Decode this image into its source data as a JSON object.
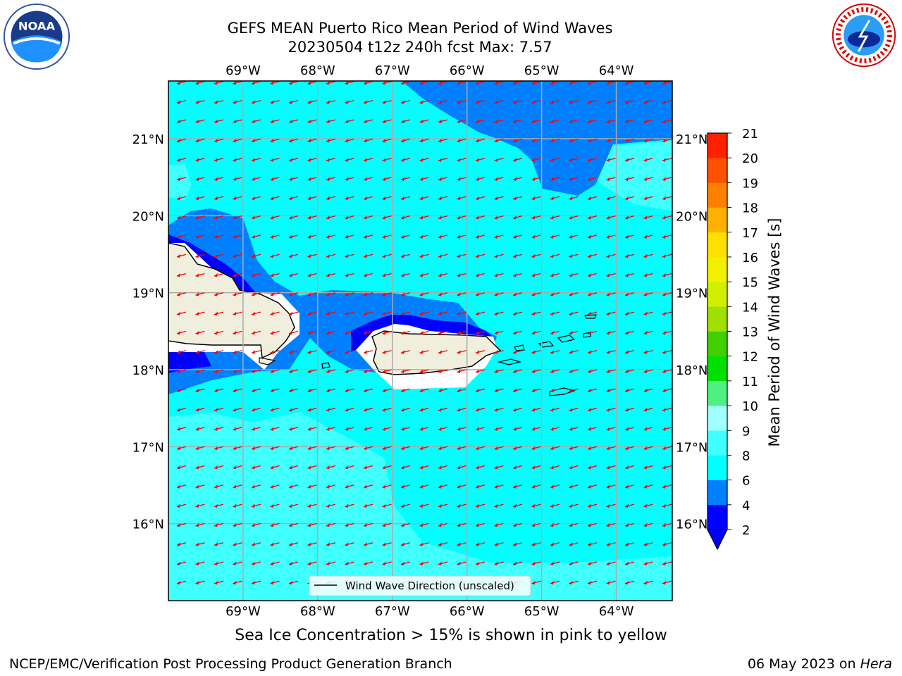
{
  "header": {
    "title_line1": "GEFS MEAN Puerto Rico Mean Period of Wind Waves",
    "title_line2": "20230504 t12z 240h fcst   Max: 7.57"
  },
  "logos": {
    "left_icon": "noaa-logo-icon",
    "left_text": "NOAA",
    "right_icon": "national-weather-service-logo-icon",
    "right_text": "NATIONAL WEATHER SERVICE"
  },
  "map": {
    "lon_labels": [
      "69°W",
      "68°W",
      "67°W",
      "66°W",
      "65°W",
      "64°W"
    ],
    "lat_labels": [
      "21°N",
      "20°N",
      "19°N",
      "18°N",
      "17°N",
      "16°N"
    ],
    "lon_range": [
      -70.0,
      -63.25
    ],
    "lat_range": [
      15.0,
      21.75
    ],
    "grid": true,
    "legend_label": "Wind Wave Direction (unscaled)",
    "arrow_color": "#ff0000"
  },
  "colorbar": {
    "label": "Mean Period of Wind Waves [s]",
    "ticks": [
      "2",
      "4",
      "6",
      "8",
      "9",
      "10",
      "11",
      "12",
      "13",
      "14",
      "15",
      "16",
      "17",
      "18",
      "19",
      "20",
      "21"
    ],
    "colors": [
      "#0000ff",
      "#0080ff",
      "#00ffff",
      "#40ffff",
      "#a0ffff",
      "#50f080",
      "#00e000",
      "#40d000",
      "#a0e000",
      "#d0f000",
      "#f0f000",
      "#ffe000",
      "#ffb000",
      "#ff8000",
      "#ff5000",
      "#ff2000"
    ],
    "extend_color": "#0000ff"
  },
  "notes": {
    "sea_ice": "Sea Ice Concentration > 15% is shown in pink to yellow"
  },
  "footer": {
    "left": "NCEP/EMC/Verification Post Processing Product Generation Branch",
    "right_prefix": "06 May 2023 on ",
    "right_host": "Hera"
  }
}
